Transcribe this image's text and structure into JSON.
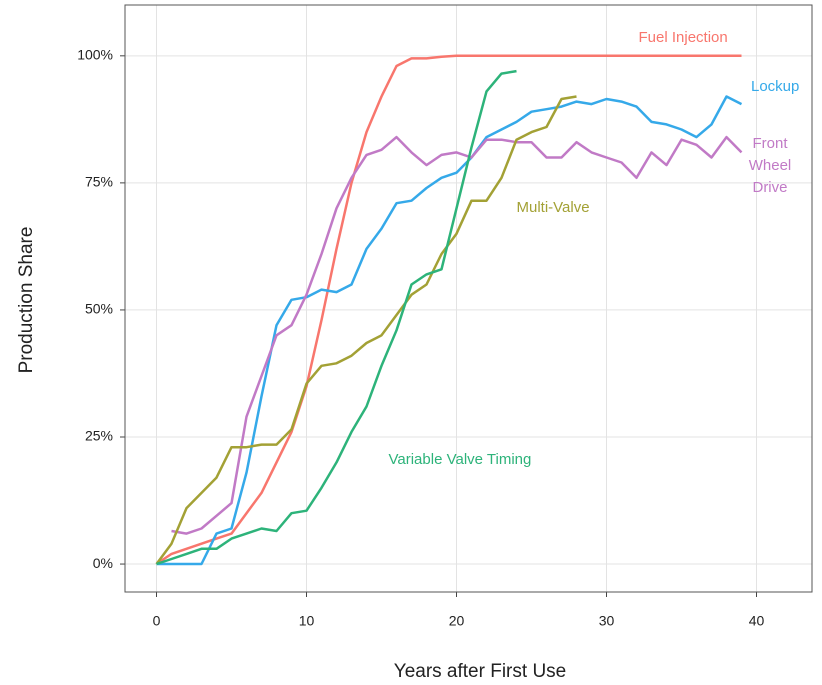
{
  "chart_data": {
    "type": "line",
    "x_label": "Years after First Use",
    "y_label": "Production Share",
    "x": [
      0,
      1,
      2,
      3,
      4,
      5,
      6,
      7,
      8,
      9,
      10,
      11,
      12,
      13,
      14,
      15,
      16,
      17,
      18,
      19,
      20,
      21,
      22,
      23,
      24,
      25,
      26,
      27,
      28,
      29,
      30,
      31,
      32,
      33,
      34,
      35,
      36,
      37,
      38,
      39
    ],
    "series": [
      {
        "name": "Fuel Injection",
        "color": "#f8766d",
        "values": [
          0,
          2,
          3,
          4,
          5,
          6,
          10,
          14,
          20,
          26,
          35,
          48,
          62,
          75,
          85,
          92,
          98,
          99.5,
          99.5,
          99.8,
          100,
          100,
          100,
          100,
          100,
          100,
          100,
          100,
          100,
          100,
          100,
          100,
          100,
          100,
          100,
          100,
          100,
          100,
          100,
          100
        ]
      },
      {
        "name": "Lockup",
        "color": "#35a9e9",
        "values": [
          0,
          0,
          0,
          0,
          6,
          7,
          18,
          33,
          47,
          52,
          52.5,
          54,
          53.5,
          55,
          62,
          66,
          71,
          71.5,
          74,
          76,
          77,
          80,
          84,
          85.5,
          87,
          89,
          89.5,
          90,
          91,
          90.5,
          91.5,
          91,
          90,
          87,
          86.5,
          85.5,
          84,
          86.5,
          92,
          90.5
        ]
      },
      {
        "name": "Front Wheel Drive",
        "color": "#c17ac6",
        "values": [
          null,
          6.5,
          6,
          7,
          9.5,
          12,
          29,
          37,
          45,
          47,
          53,
          61,
          70,
          76,
          80.5,
          81.5,
          84,
          81,
          78.5,
          80.5,
          81,
          80,
          83.5,
          83.5,
          83,
          83,
          80,
          80,
          83,
          81,
          80,
          79,
          76,
          81,
          78.5,
          83.5,
          82.5,
          80,
          84,
          81
        ]
      },
      {
        "name": "Multi-Valve",
        "color": "#a3a135",
        "values": [
          0,
          4,
          11,
          14,
          17,
          23,
          23,
          23.5,
          23.5,
          26.5,
          35.5,
          39,
          39.5,
          41,
          43.5,
          45,
          49,
          53,
          55,
          61,
          65,
          71.5,
          71.5,
          76,
          83.5,
          85,
          86,
          91.5,
          92,
          null,
          null,
          null,
          null,
          null,
          null,
          null,
          null,
          null,
          null,
          null
        ]
      },
      {
        "name": "Variable Valve Timing",
        "color": "#2db37a",
        "values": [
          0,
          1,
          2,
          3,
          3,
          5,
          6,
          7,
          6.5,
          10,
          10.5,
          15,
          20,
          26,
          31,
          39,
          46,
          55,
          57,
          58,
          70,
          82,
          93,
          96.5,
          97,
          null,
          null,
          null,
          null,
          null,
          null,
          null,
          null,
          null,
          null,
          null,
          null,
          null,
          null,
          null
        ]
      }
    ],
    "xlim": [
      -2.1,
      43.7
    ],
    "ylim": [
      -5.5,
      110
    ],
    "xticks": [
      0,
      10,
      20,
      30,
      40
    ],
    "yticks": [
      {
        "value": 0,
        "label": "0%"
      },
      {
        "value": 25,
        "label": "25%"
      },
      {
        "value": 50,
        "label": "50%"
      },
      {
        "value": 75,
        "label": "75%"
      },
      {
        "value": 100,
        "label": "100%"
      }
    ],
    "grid": true
  }
}
